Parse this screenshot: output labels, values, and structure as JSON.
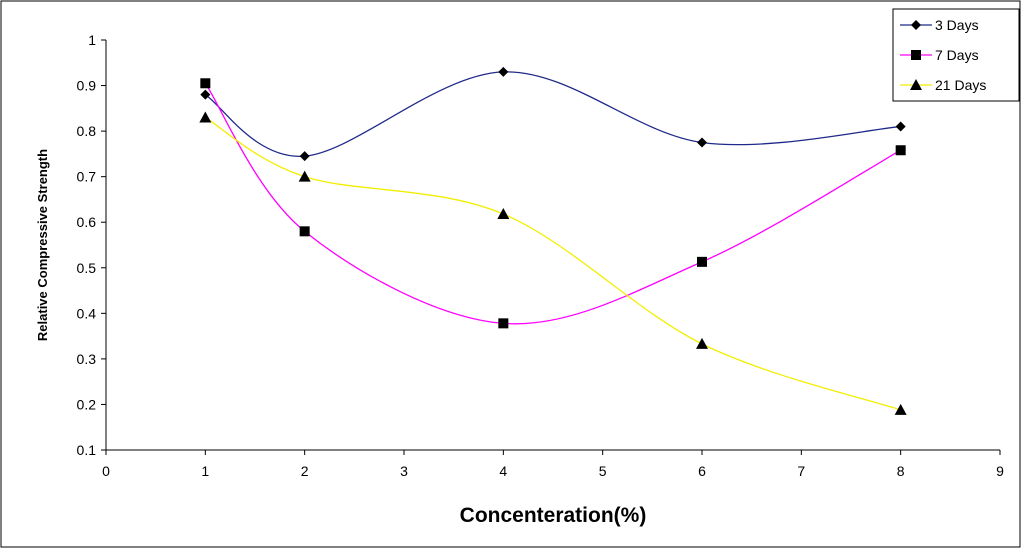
{
  "chart_data": {
    "type": "line",
    "title": "",
    "xlabel": "Concenteration(%)",
    "ylabel": "Relative Compressive Strength",
    "xlim": [
      0,
      9
    ],
    "ylim": [
      0.1,
      1
    ],
    "x_ticks": [
      "0",
      "1",
      "2",
      "3",
      "4",
      "5",
      "6",
      "7",
      "8",
      "9"
    ],
    "y_ticks": [
      "0.1",
      "0.2",
      "0.3",
      "0.4",
      "0.5",
      "0.6",
      "0.7",
      "0.8",
      "0.9",
      "1"
    ],
    "x": [
      1,
      2,
      4,
      6,
      8
    ],
    "smoothed": true,
    "grid": false,
    "legend_position": "top-right",
    "series": [
      {
        "name": "3 Days",
        "values": [
          0.88,
          0.745,
          0.93,
          0.775,
          0.81
        ],
        "color": "#1f2a8a",
        "marker": "diamond"
      },
      {
        "name": "7 Days",
        "values": [
          0.905,
          0.58,
          0.378,
          0.513,
          0.758
        ],
        "color": "#ff00ff",
        "marker": "square"
      },
      {
        "name": "21 Days",
        "values": [
          0.83,
          0.7,
          0.618,
          0.333,
          0.188
        ],
        "color": "#f2ee00",
        "marker": "triangle"
      }
    ]
  }
}
